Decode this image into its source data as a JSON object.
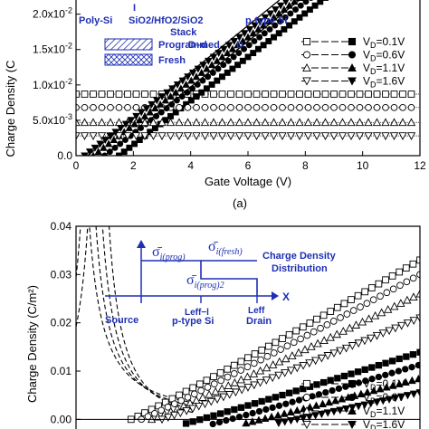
{
  "chart_data": [
    {
      "panel": "top",
      "type": "line",
      "caption": "(a)",
      "xlabel": "Gate Voltage (V)",
      "ylabel": "Charge Density (C",
      "xlim": [
        0,
        12
      ],
      "ylim": [
        0,
        0.022
      ],
      "xticks": [
        "0",
        "2",
        "4",
        "6",
        "8",
        "10",
        "12"
      ],
      "yticks": [
        {
          "v": 0.0,
          "label": "0.0"
        },
        {
          "v": 0.005,
          "label": "5.0x10-3"
        },
        {
          "v": 0.01,
          "label": "1.0x10-2"
        },
        {
          "v": 0.015,
          "label": "1.5x10-2"
        },
        {
          "v": 0.02,
          "label": "2.0x10-2"
        }
      ],
      "series": [
        {
          "name": "VD=0.1V",
          "style": "square",
          "dash": true,
          "flat_y": 0.0087,
          "rise_start_x": 1.5,
          "slope": 0.0031,
          "x_end": 11.3
        },
        {
          "name": "VD=0.6V",
          "style": "circle",
          "dash": true,
          "flat_y": 0.0068,
          "rise_start_x": 1.0,
          "slope": 0.0031,
          "x_end": 11.0
        },
        {
          "name": "VD=1.1V",
          "style": "triangle-up",
          "dash": true,
          "flat_y": 0.0047,
          "rise_start_x": 0.6,
          "slope": 0.0031,
          "x_end": 10.5
        },
        {
          "name": "VD=1.6V",
          "style": "triangle-down",
          "dash": true,
          "flat_y": 0.0028,
          "rise_start_x": 0.3,
          "slope": 0.0031,
          "x_end": 10.0
        }
      ],
      "reference_lines": [
        {
          "x": [
            0.4,
            7.1
          ],
          "y": [
            0.0,
            0.022
          ]
        },
        {
          "x": [
            1.0,
            7.8
          ],
          "y": [
            0.0,
            0.022
          ]
        }
      ],
      "annotations": {
        "layers": [
          "Poly-Si",
          "SiO2/HfO2/SiO2",
          "Stack",
          "D–d",
          "D",
          "p-type Si"
        ],
        "fill_legend": [
          "Programmed",
          "Fresh"
        ],
        "tick_mark": "I"
      }
    },
    {
      "panel": "bottom",
      "type": "line",
      "xlabel": "",
      "ylabel": "Charge Density (C/m²)",
      "xlim": [
        0,
        1
      ],
      "ylim": [
        -0.002,
        0.04
      ],
      "yticks": [
        {
          "v": 0.0,
          "label": "0.00"
        },
        {
          "v": 0.01,
          "label": "0.01"
        },
        {
          "v": 0.02,
          "label": "0.02"
        },
        {
          "v": 0.03,
          "label": "0.03"
        },
        {
          "v": 0.04,
          "label": "0.04"
        }
      ],
      "series": [
        {
          "name": "VD=0.1V",
          "style": "square",
          "dash": true,
          "y0": 0.0,
          "y1": 0.033,
          "x0": 0.16
        },
        {
          "name": "VD=0.6V",
          "style": "circle",
          "dash": true,
          "y0": 0.0,
          "y1": 0.03,
          "x0": 0.19
        },
        {
          "name": "VD=1.1V",
          "style": "triangle-up",
          "dash": true,
          "y0": 0.0,
          "y1": 0.026,
          "x0": 0.22
        },
        {
          "name": "VD=1.6V",
          "style": "triangle-down",
          "dash": true,
          "y0": 0.0,
          "y1": 0.021,
          "x0": 0.25
        }
      ],
      "inset": {
        "labels": {
          "sigma_prog": "σ̄",
          "sigma_prog_sub": "i(prog)",
          "sigma_fresh": "σ̄",
          "sigma_fresh_sub": "i(fresh)",
          "sigma_prog2": "σ̄",
          "sigma_prog2_sub": "i(prog)2",
          "title1": "Charge Density",
          "title2": "Distribution",
          "x_arrow": "X",
          "source": "Source",
          "leff_l": "Leff−l",
          "psi": "p-type Si",
          "leff": "Leff",
          "drain": "Drain"
        }
      }
    }
  ],
  "legend": {
    "entries": [
      {
        "label": "VD=0.1V",
        "base": "V",
        "sub": "D",
        "val": "=0.1V",
        "open": "square",
        "filled": "square"
      },
      {
        "label": "VD=0.6V",
        "base": "V",
        "sub": "D",
        "val": "=0.6V",
        "open": "circle",
        "filled": "circle"
      },
      {
        "label": "VD=1.1V",
        "base": "V",
        "sub": "D",
        "val": "=1.1V",
        "open": "triangle-up",
        "filled": "triangle-up"
      },
      {
        "label": "VD=1.6V",
        "base": "V",
        "sub": "D",
        "val": "=1.6V",
        "open": "triangle-down",
        "filled": "triangle-down"
      }
    ]
  },
  "colors": {
    "blue": "#1f2fb4",
    "black": "#000000"
  }
}
